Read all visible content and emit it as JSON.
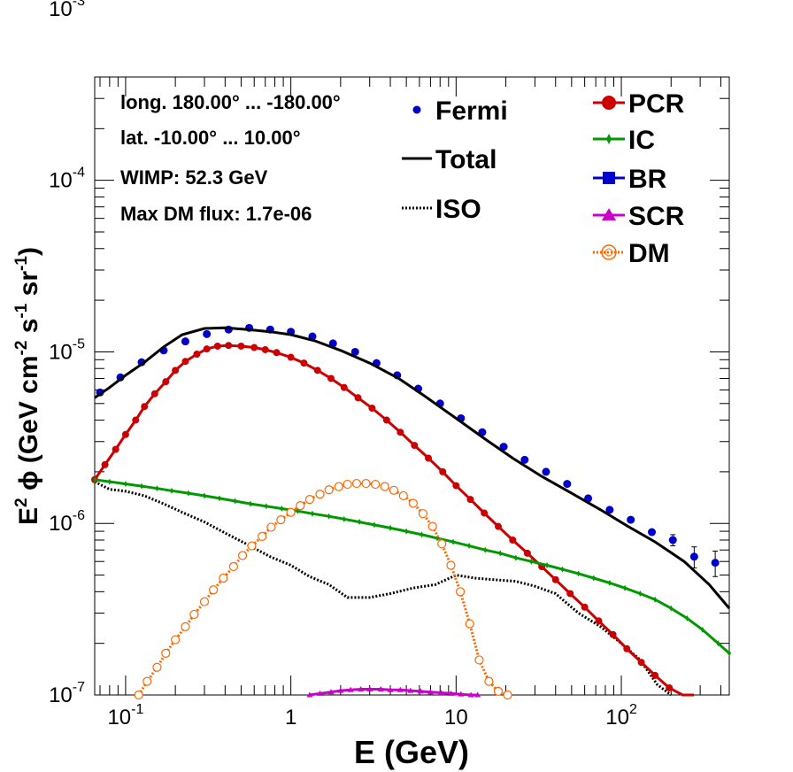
{
  "chart_data": {
    "type": "scatter",
    "title": "",
    "xlabel": "E (GeV)",
    "ylabel_parts": {
      "a": "E",
      "b": "2",
      "c": " ϕ (GeV cm",
      "d": "-2",
      "e": " s",
      "f": "-1",
      "g": " sr",
      "h": "-1",
      "i": ")"
    },
    "x_scale": "log",
    "y_scale": "log",
    "xlim": [
      0.065,
      450
    ],
    "ylim": [
      1e-07,
      0.0004
    ],
    "x_ticks": [
      {
        "value": 0.1,
        "label": "10",
        "sup": "-1"
      },
      {
        "value": 1,
        "label": "1",
        "sup": ""
      },
      {
        "value": 10,
        "label": "10",
        "sup": ""
      },
      {
        "value": 100,
        "label": "10",
        "sup": "2"
      }
    ],
    "y_ticks": [
      {
        "value": 1e-07,
        "label": "10",
        "sup": "-7"
      },
      {
        "value": 1e-06,
        "label": "10",
        "sup": "-6"
      },
      {
        "value": 1e-05,
        "label": "10",
        "sup": "-5"
      },
      {
        "value": 0.0001,
        "label": "10",
        "sup": "-4"
      },
      {
        "value": 0.001,
        "label": "10",
        "sup": "-3"
      }
    ],
    "grid": false,
    "annotations": [
      "long. 180.00° ... -180.00°",
      "lat. -10.00° ... 10.00°",
      "WIMP: 52.3 GeV",
      "Max DM flux: 1.7e-06"
    ],
    "legend_placement": "top-right",
    "series": [
      {
        "name": "Fermi",
        "kind": "points",
        "color": "#0000cc",
        "x": [
          0.07,
          0.093,
          0.125,
          0.17,
          0.23,
          0.31,
          0.42,
          0.56,
          0.75,
          1.0,
          1.35,
          1.8,
          2.45,
          3.3,
          4.4,
          5.9,
          8.0,
          10.7,
          14.4,
          19.4,
          26,
          35,
          47,
          63,
          85,
          114,
          153,
          205,
          276,
          370
        ],
        "y": [
          5.8e-06,
          7.1e-06,
          8.7e-06,
          1.02e-05,
          1.15e-05,
          1.27e-05,
          1.35e-05,
          1.38e-05,
          1.35e-05,
          1.31e-05,
          1.23e-05,
          1.12e-05,
          1e-05,
          8.6e-06,
          7.3e-06,
          6.1e-06,
          5e-06,
          4.1e-06,
          3.4e-06,
          2.8e-06,
          2.35e-06,
          2e-06,
          1.7e-06,
          1.4e-06,
          1.2e-06,
          1.05e-06,
          8.9e-07,
          8e-07,
          6.4e-07,
          5.9e-07
        ],
        "yerr": [
          0,
          0,
          0,
          0,
          0,
          0,
          0,
          0,
          0,
          0,
          0,
          0,
          0,
          0,
          0,
          0,
          0,
          0,
          0,
          0,
          0,
          0,
          0,
          0,
          0,
          0,
          0,
          6e-08,
          9e-08,
          1e-07
        ]
      },
      {
        "name": "Total",
        "kind": "line",
        "color": "#000000",
        "x": [
          0.065,
          0.08,
          0.1,
          0.13,
          0.17,
          0.22,
          0.3,
          0.4,
          0.55,
          0.75,
          1.0,
          1.4,
          2.0,
          3.0,
          4.5,
          6.5,
          10,
          15,
          22,
          33,
          50,
          75,
          110,
          160,
          240,
          340,
          450
        ],
        "y": [
          5.4e-06,
          6.2e-06,
          7.3e-06,
          8.7e-06,
          1.07e-05,
          1.26e-05,
          1.37e-05,
          1.38e-05,
          1.35e-05,
          1.31e-05,
          1.26e-05,
          1.16e-05,
          1.02e-05,
          8.6e-06,
          7e-06,
          5.5e-06,
          4.1e-06,
          3.1e-06,
          2.4e-06,
          1.88e-06,
          1.5e-06,
          1.2e-06,
          9.6e-07,
          7.8e-07,
          6e-07,
          4.4e-07,
          3.2e-07
        ]
      },
      {
        "name": "ISO",
        "kind": "dotted",
        "color": "#000000",
        "x": [
          0.065,
          0.08,
          0.1,
          0.13,
          0.17,
          0.22,
          0.3,
          0.4,
          0.55,
          0.75,
          1.0,
          1.3,
          1.7,
          2.2,
          3.0,
          4.0,
          5.5,
          7.5,
          10,
          13,
          17,
          23,
          30,
          40,
          55,
          75,
          100,
          130,
          165,
          200
        ],
        "y": [
          1.75e-06,
          1.58e-06,
          1.54e-06,
          1.45e-06,
          1.3e-06,
          1.16e-06,
          1.02e-06,
          8.8e-07,
          7.5e-07,
          6.4e-07,
          5.7e-07,
          4.9e-07,
          4.4e-07,
          3.7e-07,
          3.7e-07,
          3.9e-07,
          4.2e-07,
          4.4e-07,
          5e-07,
          4.8e-07,
          4.7e-07,
          4.6e-07,
          4.3e-07,
          3.9e-07,
          3e-07,
          2.5e-07,
          2e-07,
          1.6e-07,
          1.15e-07,
          9e-08
        ]
      },
      {
        "name": "PCR",
        "kind": "markers",
        "color": "#cc0000",
        "x": [
          0.065,
          0.075,
          0.087,
          0.1,
          0.115,
          0.13,
          0.15,
          0.175,
          0.2,
          0.23,
          0.27,
          0.31,
          0.36,
          0.42,
          0.5,
          0.6,
          0.7,
          0.82,
          1.0,
          1.2,
          1.45,
          1.75,
          2.1,
          2.55,
          3.1,
          3.8,
          4.6,
          5.6,
          6.8,
          8.3,
          10,
          12.2,
          14.8,
          18,
          22,
          27,
          33,
          40,
          49,
          60,
          73,
          89,
          108,
          132,
          160,
          195,
          235,
          275
        ],
        "y": [
          1.8e-06,
          2.2e-06,
          2.7e-06,
          3.3e-06,
          4e-06,
          4.8e-06,
          5.7e-06,
          6.7e-06,
          7.8e-06,
          8.8e-06,
          9.7e-06,
          1.04e-05,
          1.08e-05,
          1.09e-05,
          1.08e-05,
          1.06e-05,
          1.03e-05,
          9.9e-06,
          9.3e-06,
          8.6e-06,
          7.8e-06,
          7e-06,
          6.2e-06,
          5.4e-06,
          4.7e-06,
          4e-06,
          3.4e-06,
          2.85e-06,
          2.4e-06,
          2e-06,
          1.66e-06,
          1.38e-06,
          1.15e-06,
          9.6e-07,
          8e-07,
          6.7e-07,
          5.6e-07,
          4.7e-07,
          3.9e-07,
          3.25e-07,
          2.7e-07,
          2.25e-07,
          1.86e-07,
          1.55e-07,
          1.3e-07,
          1.1e-07,
          9.5e-08,
          8.5e-08
        ]
      },
      {
        "name": "IC",
        "kind": "markers",
        "color": "#009900",
        "x": [
          0.065,
          0.08,
          0.1,
          0.125,
          0.155,
          0.19,
          0.24,
          0.3,
          0.37,
          0.46,
          0.57,
          0.71,
          0.88,
          1.1,
          1.35,
          1.7,
          2.1,
          2.6,
          3.2,
          4.0,
          5.0,
          6.2,
          7.7,
          9.6,
          12,
          15,
          18.5,
          23,
          28.5,
          35.5,
          44,
          55,
          68,
          85,
          105,
          130,
          160,
          200,
          250,
          310,
          385,
          450
        ],
        "y": [
          1.8e-06,
          1.75e-06,
          1.7e-06,
          1.65e-06,
          1.6e-06,
          1.55e-06,
          1.5e-06,
          1.45e-06,
          1.4e-06,
          1.35e-06,
          1.3e-06,
          1.26e-06,
          1.22e-06,
          1.18e-06,
          1.14e-06,
          1.1e-06,
          1.06e-06,
          1.02e-06,
          9.8e-07,
          9.4e-07,
          9e-07,
          8.6e-07,
          8.2e-07,
          7.8e-07,
          7.4e-07,
          7e-07,
          6.7e-07,
          6.3e-07,
          6e-07,
          5.7e-07,
          5.4e-07,
          5.1e-07,
          4.8e-07,
          4.5e-07,
          4.2e-07,
          3.9e-07,
          3.6e-07,
          3.2e-07,
          2.8e-07,
          2.4e-07,
          2e-07,
          1.75e-07
        ]
      },
      {
        "name": "BR",
        "kind": "markers",
        "color": "#0000cc",
        "x": [],
        "y": []
      },
      {
        "name": "SCR",
        "kind": "markers",
        "color": "#cc00cc",
        "x": [
          1.3,
          1.5,
          1.75,
          2.0,
          2.3,
          2.65,
          3.0,
          3.5,
          4.0,
          4.6,
          5.3,
          6.1,
          7.0,
          8.1,
          9.3,
          10.7,
          12.3,
          13.5
        ],
        "y": [
          1e-07,
          1.02e-07,
          1.04e-07,
          1.06e-07,
          1.07e-07,
          1.08e-07,
          1.08e-07,
          1.08e-07,
          1.07e-07,
          1.07e-07,
          1.06e-07,
          1.05e-07,
          1.04e-07,
          1.03e-07,
          1.02e-07,
          1.01e-07,
          1e-07,
          1e-07
        ]
      },
      {
        "name": "DM",
        "kind": "open-markers",
        "color": "#ff6600",
        "x": [
          0.12,
          0.135,
          0.155,
          0.175,
          0.2,
          0.23,
          0.26,
          0.3,
          0.34,
          0.39,
          0.45,
          0.51,
          0.58,
          0.67,
          0.76,
          0.87,
          1.0,
          1.14,
          1.3,
          1.5,
          1.7,
          1.95,
          2.2,
          2.5,
          2.85,
          3.25,
          3.7,
          4.2,
          4.8,
          5.5,
          6.3,
          7.2,
          8.2,
          9.3,
          10.6,
          12.1,
          13.8,
          15.8,
          18,
          20.5
        ],
        "y": [
          1e-07,
          1.2e-07,
          1.45e-07,
          1.75e-07,
          2.1e-07,
          2.5e-07,
          2.95e-07,
          3.5e-07,
          4.1e-07,
          4.8e-07,
          5.6e-07,
          6.5e-07,
          7.4e-07,
          8.4e-07,
          9.5e-07,
          1.05e-06,
          1.16e-06,
          1.27e-06,
          1.38e-06,
          1.48e-06,
          1.57e-06,
          1.64e-06,
          1.69e-06,
          1.71e-06,
          1.71e-06,
          1.69e-06,
          1.64e-06,
          1.56e-06,
          1.45e-06,
          1.31e-06,
          1.14e-06,
          9.6e-07,
          7.6e-07,
          5.7e-07,
          4e-07,
          2.6e-07,
          1.6e-07,
          1.2e-07,
          1.05e-07,
          1e-07
        ]
      }
    ]
  }
}
